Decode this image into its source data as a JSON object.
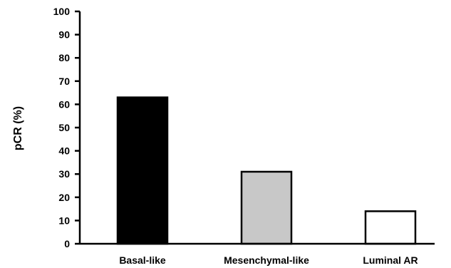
{
  "chart_data": {
    "type": "bar",
    "title": "",
    "xlabel": "",
    "ylabel": "pCR (%)",
    "categories": [
      "Basal-like",
      "Mesenchymal-like",
      "Luminal AR"
    ],
    "values": [
      63,
      31,
      14
    ],
    "bar_colors": [
      "#000000",
      "#c8c8c8",
      "#ffffff"
    ],
    "bar_outline": "#000000",
    "ylim": [
      0,
      100
    ],
    "yticks": [
      0,
      10,
      20,
      30,
      40,
      50,
      60,
      70,
      80,
      90,
      100
    ],
    "ytick_labels": [
      "0",
      "10",
      "20",
      "30",
      "40",
      "50",
      "60",
      "70",
      "80",
      "90",
      "100"
    ],
    "grid": false,
    "legend": "none"
  }
}
